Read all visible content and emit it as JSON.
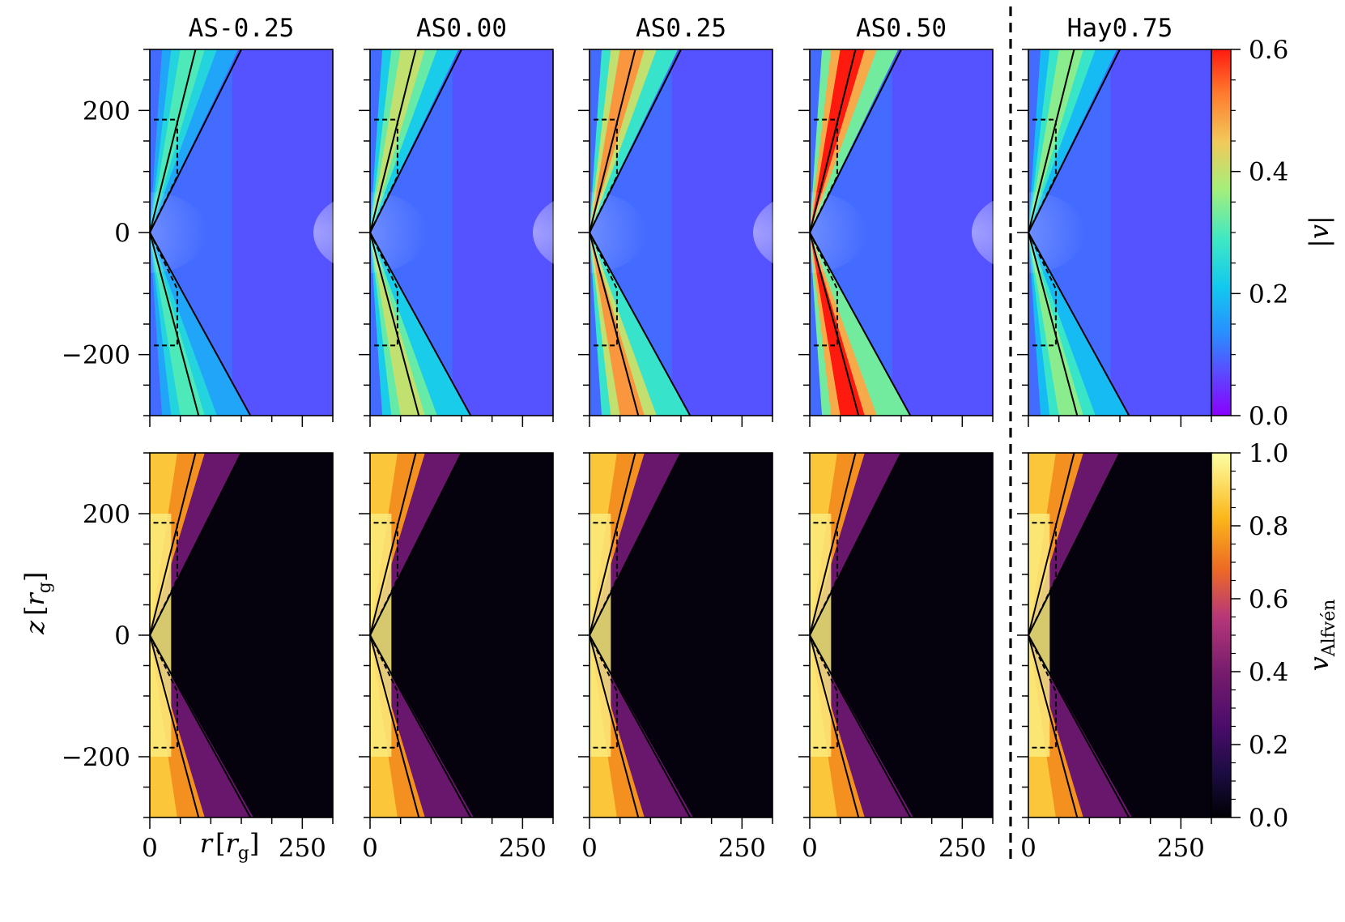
{
  "chart_data": {
    "type": "heatmap",
    "panels": [
      {
        "title": "AS-0.25",
        "x": 0
      },
      {
        "title": "AS0.00",
        "x": 1
      },
      {
        "title": "AS0.25",
        "x": 2
      },
      {
        "title": "AS0.50",
        "x": 3
      },
      {
        "title": "Hay0.75",
        "x": 4
      }
    ],
    "rows": [
      {
        "quantity": "|v|",
        "colormap": "rainbow",
        "colorbar_ticks": [
          "0.0",
          "0.2",
          "0.4",
          "0.6"
        ],
        "range": [
          0.0,
          0.6
        ],
        "peak_values": [
          0.3,
          0.4,
          0.5,
          0.6,
          0.35
        ]
      },
      {
        "quantity": "v_Alfvén",
        "colormap": "inferno",
        "colorbar_ticks": [
          "0.0",
          "0.2",
          "0.4",
          "0.6",
          "0.8",
          "1.0"
        ],
        "range": [
          0.0,
          1.0
        ],
        "peak_values": [
          0.95,
          0.95,
          0.95,
          0.95,
          0.95
        ]
      }
    ],
    "colorbar_labels": {
      "top": "|v|",
      "bottom_main": "v",
      "bottom_sub": "Alfvén"
    },
    "xlabel": {
      "var": "r",
      "unit": "r",
      "unit_sub": "g"
    },
    "ylabel": {
      "var": "z",
      "unit": "r",
      "unit_sub": "g"
    },
    "xlim": [
      0,
      300
    ],
    "ylim": [
      -300,
      300
    ],
    "xticks": [
      "0",
      "250"
    ],
    "yticks": [
      "200",
      "0",
      "−200"
    ],
    "separator": "dashed vertical line between AS0.50 and Hay0.75",
    "contours": [
      "solid",
      "dashed"
    ]
  }
}
